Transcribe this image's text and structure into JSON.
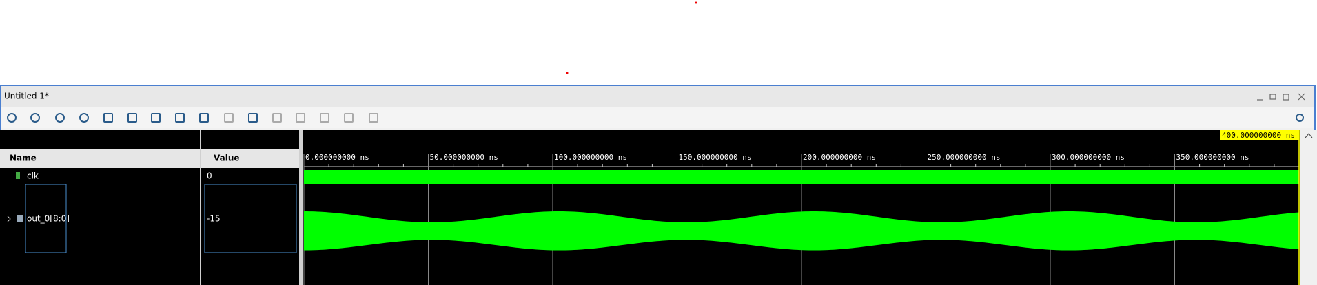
{
  "window": {
    "title": "Untitled 1*"
  },
  "columns": {
    "name": "Name",
    "value": "Value"
  },
  "signals": [
    {
      "name": "clk",
      "value": "0"
    },
    {
      "name": "out_0[8:0]",
      "value": "-15"
    }
  ],
  "timeline": {
    "ticks": [
      "0.000000000 ns",
      "50.000000000 ns",
      "100.000000000 ns",
      "150.000000000 ns",
      "200.000000000 ns",
      "250.000000000 ns",
      "300.000000000 ns",
      "350.000000000 ns"
    ],
    "cursor": "400.000000000 ns"
  }
}
